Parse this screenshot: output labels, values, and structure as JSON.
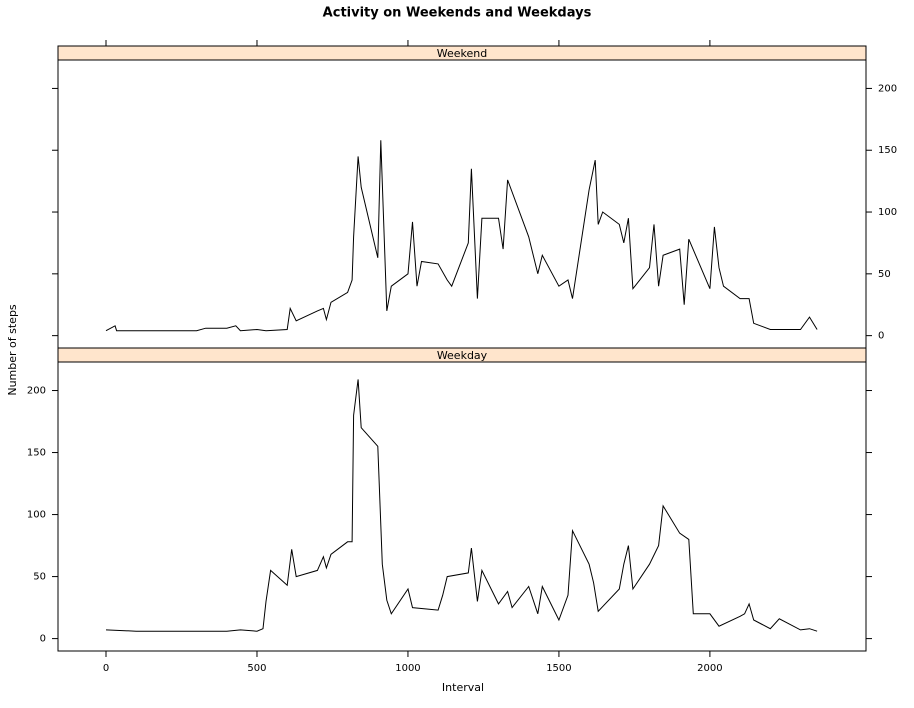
{
  "chart_data": {
    "type": "line",
    "title": "Activity on Weekends and Weekdays",
    "xlabel": "Interval",
    "ylabel": "Number of steps",
    "xlim": [
      -159,
      2517
    ],
    "xticks": [
      0,
      500,
      1000,
      1500,
      2000
    ],
    "ylim": [
      -10,
      223
    ],
    "yticks": [
      0,
      50,
      100,
      150,
      200
    ],
    "strip_color": "#ffe5cc",
    "series": [
      {
        "name": "Weekend",
        "color": "#000000",
        "x": [
          0,
          30,
          35,
          100,
          300,
          330,
          400,
          430,
          445,
          500,
          530,
          600,
          610,
          630,
          700,
          720,
          730,
          745,
          800,
          815,
          820,
          835,
          845,
          900,
          910,
          930,
          945,
          1000,
          1015,
          1030,
          1045,
          1100,
          1130,
          1145,
          1200,
          1210,
          1230,
          1245,
          1300,
          1315,
          1330,
          1400,
          1430,
          1445,
          1500,
          1530,
          1545,
          1600,
          1620,
          1630,
          1645,
          1700,
          1715,
          1730,
          1745,
          1800,
          1815,
          1830,
          1845,
          1900,
          1915,
          1930,
          2000,
          2015,
          2030,
          2045,
          2100,
          2130,
          2145,
          2200,
          2230,
          2300,
          2330,
          2355
        ],
        "values": [
          4,
          8,
          4,
          4,
          4,
          6,
          6,
          8,
          4,
          5,
          4,
          5,
          22,
          12,
          20,
          22,
          13,
          27,
          35,
          45,
          80,
          145,
          120,
          63,
          158,
          20,
          40,
          50,
          92,
          40,
          60,
          58,
          45,
          40,
          75,
          135,
          30,
          95,
          95,
          70,
          126,
          80,
          50,
          65,
          40,
          45,
          30,
          118,
          142,
          90,
          100,
          90,
          75,
          95,
          38,
          55,
          90,
          40,
          65,
          70,
          25,
          78,
          38,
          88,
          55,
          40,
          30,
          30,
          10,
          5,
          5,
          5,
          15,
          5
        ]
      },
      {
        "name": "Weekday",
        "color": "#000000",
        "x": [
          0,
          100,
          200,
          300,
          400,
          445,
          500,
          520,
          530,
          545,
          600,
          615,
          630,
          700,
          720,
          730,
          745,
          800,
          815,
          820,
          835,
          845,
          900,
          915,
          930,
          945,
          1000,
          1015,
          1100,
          1115,
          1130,
          1200,
          1210,
          1230,
          1245,
          1300,
          1330,
          1345,
          1400,
          1430,
          1445,
          1500,
          1530,
          1545,
          1600,
          1615,
          1630,
          1700,
          1715,
          1730,
          1745,
          1800,
          1830,
          1845,
          1900,
          1930,
          1945,
          2000,
          2030,
          2100,
          2115,
          2130,
          2145,
          2200,
          2230,
          2300,
          2330,
          2355
        ],
        "values": [
          7,
          6,
          6,
          6,
          6,
          7,
          6,
          8,
          30,
          55,
          43,
          72,
          50,
          55,
          66,
          57,
          68,
          78,
          78,
          180,
          209,
          170,
          155,
          60,
          31,
          20,
          40,
          25,
          23,
          35,
          50,
          53,
          73,
          30,
          55,
          28,
          38,
          25,
          42,
          20,
          42,
          15,
          35,
          87,
          60,
          45,
          22,
          40,
          60,
          75,
          40,
          60,
          75,
          107,
          85,
          80,
          20,
          20,
          10,
          18,
          20,
          28,
          15,
          8,
          16,
          7,
          8,
          6
        ]
      }
    ]
  }
}
